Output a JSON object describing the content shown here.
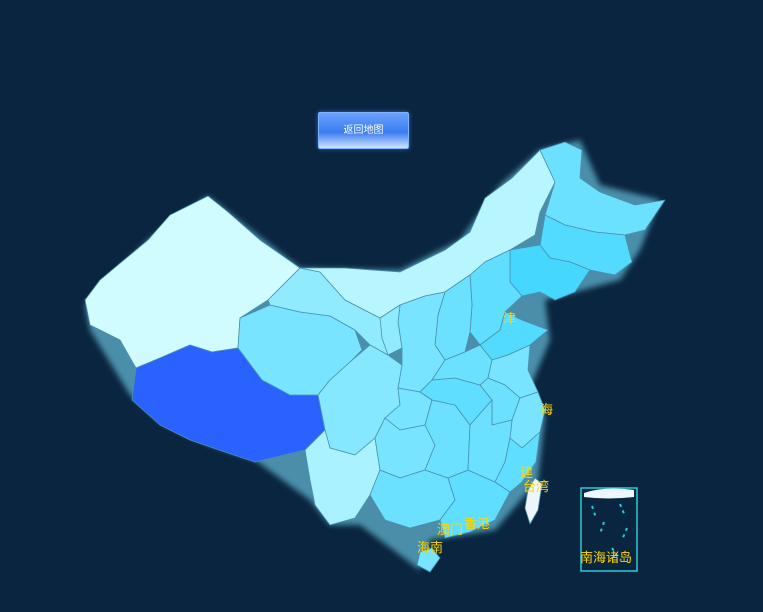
{
  "toolbar": {
    "return_label": "返回地图"
  },
  "map": {
    "labels": {
      "tianjin": "津",
      "shanghai": "海",
      "fujian": "建",
      "taiwan": "台湾",
      "hongkong": "香港",
      "macau": "澳门",
      "hainan": "海南",
      "south_sea": "南海诸岛"
    },
    "colors": {
      "background": "#0a2540",
      "highlight": "#2962ff",
      "label": "#ffd700",
      "border": "#4a90b0"
    },
    "level_scale": {
      "min": 0,
      "max": 100
    },
    "regions": {
      "xinjiang": 5,
      "tibet": 100,
      "qinghai": 40,
      "gansu": 30,
      "inner_mongolia": 15,
      "heilongjiang": 45,
      "jilin": 55,
      "liaoning": 60,
      "hebei": 50,
      "shanxi": 45,
      "shaanxi": 40,
      "sichuan": 35,
      "yunnan": 20,
      "guangxi": 45,
      "guangdong": 50,
      "guizhou": 40,
      "hunan": 45,
      "hubei": 50,
      "henan": 45,
      "shandong": 55,
      "jiangsu": 40,
      "anhui": 45,
      "zhejiang": 40,
      "jiangxi": 45,
      "fujian": 50,
      "chongqing": 40,
      "ningxia": 30,
      "hainan": 40,
      "taiwan": 0
    }
  }
}
